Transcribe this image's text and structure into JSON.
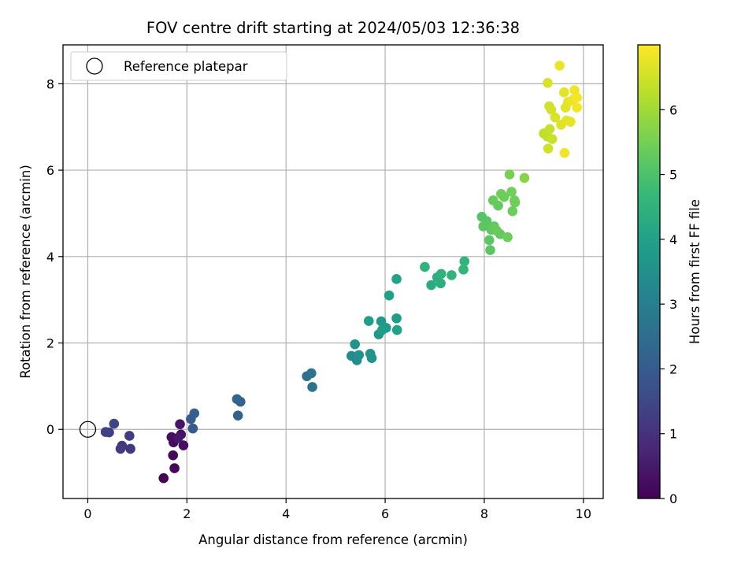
{
  "chart_data": {
    "type": "scatter",
    "title": "FOV centre drift starting at 2024/05/03 12:36:38",
    "xlabel": "Angular distance from reference (arcmin)",
    "ylabel": "Rotation from reference (arcmin)",
    "xlim": [
      -0.5,
      10.4
    ],
    "ylim": [
      -1.6,
      8.9
    ],
    "xticks": [
      0,
      2,
      4,
      6,
      8,
      10
    ],
    "xtick_labels": [
      "0",
      "2",
      "4",
      "6",
      "8",
      "10"
    ],
    "yticks": [
      0,
      2,
      4,
      6,
      8
    ],
    "ytick_labels": [
      "0",
      "2",
      "4",
      "6",
      "8"
    ],
    "grid": true,
    "legend": {
      "position": "top-left",
      "entries": [
        "Reference platepar"
      ]
    },
    "reference_point": {
      "label": "Reference platepar",
      "x": 0,
      "y": 0,
      "marker": "open-circle"
    },
    "colorbar": {
      "label": "Hours from first FF file",
      "colormap": "viridis",
      "range": [
        0,
        7
      ],
      "ticks": [
        0,
        1,
        2,
        3,
        4,
        5,
        6
      ],
      "tick_labels": [
        "0",
        "1",
        "2",
        "3",
        "4",
        "5",
        "6"
      ]
    },
    "x": [
      1.53,
      1.75,
      1.72,
      1.73,
      1.69,
      1.93,
      1.88,
      1.86,
      1.82,
      0.69,
      0.86,
      0.66,
      0.84,
      0.43,
      0.36,
      0.53,
      2.12,
      2.08,
      2.15,
      3.03,
      3.08,
      3.01,
      4.42,
      4.51,
      4.53,
      5.32,
      5.43,
      5.47,
      5.39,
      5.7,
      5.73,
      5.87,
      5.92,
      6.02,
      6.23,
      5.94,
      5.67,
      6.08,
      6.24,
      6.23,
      6.93,
      7.05,
      7.12,
      7.13,
      6.8,
      7.34,
      7.6,
      7.58,
      7.95,
      8.05,
      8.12,
      8.1,
      8.14,
      8.2,
      8.32,
      8.25,
      8.47,
      8.57,
      8.61,
      8.55,
      7.98,
      8.18,
      8.34,
      8.28,
      8.4,
      8.62,
      8.51,
      8.81,
      9.2,
      9.27,
      9.32,
      9.37,
      9.31,
      9.35,
      9.43,
      9.55,
      9.61,
      9.69,
      9.78,
      9.82,
      9.87,
      9.66,
      9.62,
      9.74,
      9.87,
      9.29,
      9.52,
      9.64,
      9.28
    ],
    "y": [
      -1.13,
      -0.9,
      -0.6,
      -0.3,
      -0.18,
      -0.37,
      -0.12,
      0.12,
      -0.2,
      -0.38,
      -0.45,
      -0.45,
      -0.15,
      -0.07,
      -0.06,
      0.13,
      0.02,
      0.24,
      0.37,
      0.32,
      0.64,
      0.7,
      1.23,
      1.3,
      0.98,
      1.7,
      1.6,
      1.72,
      1.97,
      1.75,
      1.65,
      2.2,
      2.5,
      2.35,
      2.57,
      2.3,
      2.51,
      3.1,
      2.3,
      3.48,
      3.34,
      3.52,
      3.38,
      3.6,
      3.76,
      3.57,
      3.89,
      3.7,
      4.92,
      4.82,
      4.15,
      4.38,
      4.62,
      4.7,
      4.52,
      4.6,
      4.45,
      5.05,
      5.3,
      5.5,
      4.7,
      5.3,
      5.45,
      5.18,
      5.38,
      5.25,
      5.9,
      5.82,
      6.85,
      6.78,
      6.95,
      6.72,
      7.48,
      7.4,
      7.22,
      7.05,
      7.8,
      7.58,
      7.62,
      7.85,
      7.45,
      7.15,
      6.4,
      7.12,
      7.68,
      6.5,
      8.42,
      7.45,
      8.02
    ],
    "hours": [
      0.05,
      0.1,
      0.15,
      0.2,
      0.25,
      0.3,
      0.35,
      0.4,
      0.45,
      1.1,
      1.15,
      1.2,
      1.25,
      1.3,
      1.35,
      1.4,
      2.0,
      2.05,
      2.1,
      2.15,
      2.2,
      2.25,
      2.6,
      2.65,
      2.7,
      3.4,
      3.45,
      3.5,
      3.55,
      3.6,
      3.65,
      3.7,
      3.75,
      3.8,
      3.85,
      3.9,
      3.9,
      3.95,
      4.0,
      4.0,
      4.3,
      4.35,
      4.4,
      4.45,
      4.5,
      4.55,
      4.6,
      4.65,
      5.1,
      5.15,
      5.2,
      5.2,
      5.25,
      5.3,
      5.3,
      5.35,
      5.4,
      5.4,
      5.45,
      5.5,
      5.2,
      5.35,
      5.45,
      5.3,
      5.4,
      5.45,
      5.55,
      5.7,
      6.3,
      6.35,
      6.4,
      6.45,
      6.5,
      6.55,
      6.6,
      6.65,
      6.7,
      6.75,
      6.8,
      6.85,
      6.9,
      6.7,
      6.85,
      6.75,
      6.9,
      6.5,
      6.8,
      6.7,
      6.6
    ]
  }
}
